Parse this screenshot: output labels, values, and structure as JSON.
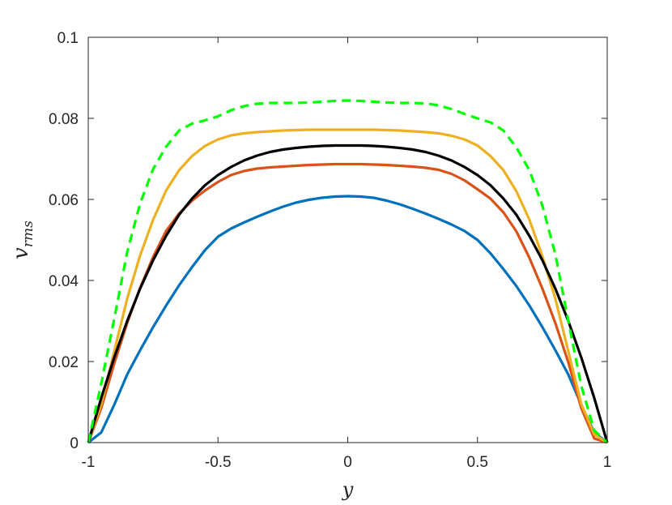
{
  "chart_data": {
    "type": "line",
    "title": "",
    "xlabel": "y",
    "ylabel": {
      "base": "v",
      "subscript": "rms"
    },
    "xlim": [
      -1,
      1
    ],
    "ylim": [
      0,
      0.1
    ],
    "x_ticks": [
      -1,
      -0.5,
      0,
      0.5,
      1
    ],
    "x_tick_labels": [
      "-1",
      "-0.5",
      "0",
      "0.5",
      "1"
    ],
    "y_ticks": [
      0,
      0.02,
      0.04,
      0.06,
      0.08,
      0.1
    ],
    "y_tick_labels": [
      "0",
      "0.02",
      "0.04",
      "0.06",
      "0.08",
      "0.1"
    ],
    "grid": false,
    "legend": "none",
    "x": [
      -1,
      -0.95,
      -0.9,
      -0.85,
      -0.8,
      -0.75,
      -0.7,
      -0.65,
      -0.6,
      -0.55,
      -0.5,
      -0.45,
      -0.4,
      -0.35,
      -0.3,
      -0.25,
      -0.2,
      -0.15,
      -0.1,
      -0.05,
      0,
      0.05,
      0.1,
      0.15,
      0.2,
      0.25,
      0.3,
      0.35,
      0.4,
      0.45,
      0.5,
      0.55,
      0.6,
      0.65,
      0.7,
      0.75,
      0.8,
      0.85,
      0.9,
      0.95,
      1
    ],
    "series": [
      {
        "color": "#0072BD",
        "style": "solid",
        "values": [
          0,
          0.0025,
          0.0093,
          0.0168,
          0.0228,
          0.0285,
          0.0338,
          0.0388,
          0.0433,
          0.0475,
          0.0508,
          0.0528,
          0.0543,
          0.0557,
          0.057,
          0.0582,
          0.0592,
          0.0599,
          0.0604,
          0.0607,
          0.0608,
          0.0607,
          0.0604,
          0.0597,
          0.0588,
          0.0577,
          0.0565,
          0.0552,
          0.0538,
          0.0522,
          0.05,
          0.0467,
          0.0428,
          0.0386,
          0.0338,
          0.0285,
          0.0228,
          0.0168,
          0.0093,
          0.0025,
          0
        ]
      },
      {
        "color": "#D95319",
        "style": "solid",
        "values": [
          0,
          0.0085,
          0.0195,
          0.0295,
          0.0382,
          0.0458,
          0.0522,
          0.0565,
          0.0597,
          0.0622,
          0.0643,
          0.066,
          0.067,
          0.0676,
          0.0679,
          0.0681,
          0.0683,
          0.0685,
          0.0686,
          0.0687,
          0.0687,
          0.0687,
          0.0686,
          0.0685,
          0.0683,
          0.0681,
          0.0678,
          0.0673,
          0.0663,
          0.0647,
          0.0625,
          0.0602,
          0.0568,
          0.0521,
          0.0456,
          0.038,
          0.0295,
          0.0198,
          0.0085,
          0.001,
          0
        ]
      },
      {
        "color": "#EDB120",
        "style": "solid",
        "values": [
          0,
          0.0095,
          0.0225,
          0.0355,
          0.0462,
          0.055,
          0.0622,
          0.0672,
          0.0707,
          0.0732,
          0.0748,
          0.0758,
          0.0763,
          0.0766,
          0.0768,
          0.077,
          0.0771,
          0.0772,
          0.0772,
          0.0772,
          0.0772,
          0.0772,
          0.0772,
          0.0771,
          0.077,
          0.0768,
          0.0766,
          0.0763,
          0.0757,
          0.0748,
          0.0733,
          0.0707,
          0.0672,
          0.062,
          0.055,
          0.046,
          0.0355,
          0.0225,
          0.0095,
          0.002,
          0
        ]
      },
      {
        "color": "#000000",
        "style": "solid",
        "values": [
          0,
          0.011,
          0.021,
          0.03,
          0.038,
          0.045,
          0.051,
          0.0562,
          0.0602,
          0.0635,
          0.066,
          0.068,
          0.0696,
          0.0708,
          0.0717,
          0.0723,
          0.0727,
          0.073,
          0.0732,
          0.0733,
          0.0733,
          0.0733,
          0.0732,
          0.073,
          0.0727,
          0.0723,
          0.0717,
          0.0708,
          0.0696,
          0.068,
          0.066,
          0.0635,
          0.0602,
          0.0562,
          0.051,
          0.045,
          0.038,
          0.03,
          0.021,
          0.011,
          0
        ]
      },
      {
        "color": "#00FF00",
        "style": "dashed",
        "values": [
          0,
          0.0145,
          0.0305,
          0.047,
          0.059,
          0.0675,
          0.073,
          0.077,
          0.0787,
          0.0795,
          0.0805,
          0.082,
          0.083,
          0.0836,
          0.0838,
          0.0838,
          0.0838,
          0.0839,
          0.0841,
          0.0843,
          0.0844,
          0.0843,
          0.0841,
          0.0839,
          0.0838,
          0.0838,
          0.0837,
          0.0832,
          0.0823,
          0.0811,
          0.08,
          0.079,
          0.077,
          0.0728,
          0.0672,
          0.0585,
          0.0465,
          0.03,
          0.014,
          0.003,
          0
        ]
      }
    ]
  }
}
